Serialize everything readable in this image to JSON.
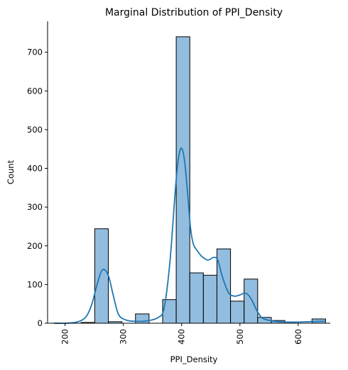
{
  "chart_data": {
    "type": "bar",
    "title": "Marginal Distribution of PPI_Density",
    "xlabel": "PPI_Density",
    "ylabel": "Count",
    "xlim": [
      170,
      655
    ],
    "ylim": [
      0,
      780
    ],
    "xticks": [
      200,
      300,
      400,
      500,
      600
    ],
    "yticks": [
      0,
      100,
      200,
      300,
      400,
      500,
      600,
      700
    ],
    "bin_edges": [
      181,
      204.3,
      227.6,
      250.9,
      274.2,
      297.5,
      320.8,
      344.1,
      367.4,
      390.7,
      414,
      437.3,
      460.6,
      483.9,
      507.2,
      530.5,
      553.8,
      577.1,
      600.4,
      623.7,
      647
    ],
    "counts": [
      0,
      0,
      2,
      244,
      4,
      0,
      24,
      0,
      61,
      740,
      130,
      124,
      192,
      57,
      114,
      15,
      7,
      0,
      0,
      11
    ],
    "kde": {
      "x": [
        181,
        200,
        220,
        235,
        245,
        255,
        262,
        268,
        275,
        283,
        292,
        305,
        320,
        340,
        360,
        370,
        380,
        390,
        395,
        400,
        405,
        410,
        415,
        420,
        428,
        435,
        445,
        455,
        462,
        470,
        480,
        490,
        500,
        508,
        515,
        522,
        530,
        540,
        560,
        580,
        600,
        620,
        640,
        647
      ],
      "y": [
        0,
        0,
        3,
        15,
        45,
        100,
        133,
        138,
        120,
        70,
        22,
        8,
        5,
        6,
        15,
        40,
        160,
        360,
        430,
        452,
        420,
        340,
        250,
        205,
        185,
        172,
        163,
        170,
        163,
        120,
        80,
        70,
        73,
        78,
        72,
        55,
        30,
        12,
        5,
        3,
        3,
        4,
        5,
        5
      ]
    },
    "colors": {
      "bar": "#7fb1d8",
      "kde": "#1f77b4",
      "edge": "#000000"
    }
  }
}
